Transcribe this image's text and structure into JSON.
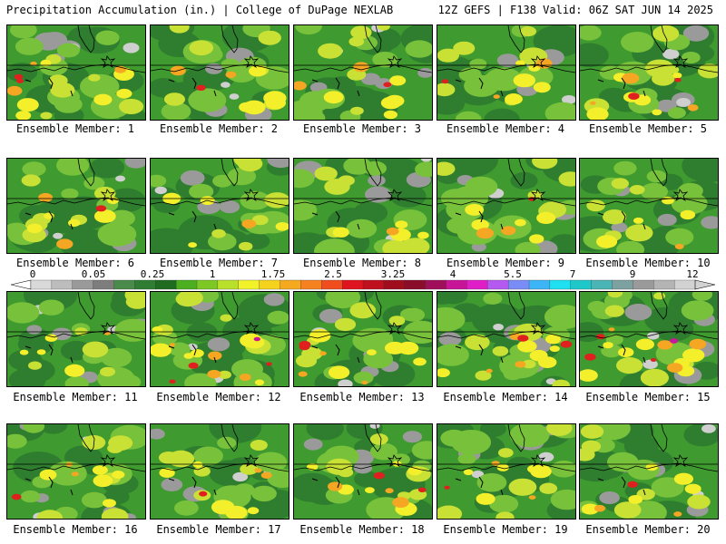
{
  "header": {
    "left": "Precipitation Accumulation (in.) | College of DuPage NEXLAB",
    "right": "12Z GEFS | F138 Valid: 06Z SAT JUN 14 2025"
  },
  "colorbar": {
    "labels": [
      "0",
      "0.05",
      "0.25",
      "1",
      "1.75",
      "2.5",
      "3.25",
      "4",
      "5.5",
      "7",
      "9",
      "12"
    ],
    "colors": [
      "#d9d9d9",
      "#bdbdbd",
      "#9a9a9a",
      "#7d7d7d",
      "#4a8a4a",
      "#2e7d32",
      "#1f6b1f",
      "#4caf1f",
      "#7ec825",
      "#b9e02a",
      "#f2f22a",
      "#f5d21e",
      "#f5a91e",
      "#f5821e",
      "#f04e1e",
      "#e0141e",
      "#c0101e",
      "#a00e1e",
      "#8a0d2a",
      "#a0105a",
      "#c81496",
      "#e01ec8",
      "#b45af0",
      "#7a8cf5",
      "#3cb4f5",
      "#1ee0f0",
      "#1ec8c8",
      "#4bb4b4",
      "#7da0a0",
      "#9a9a9a",
      "#b4b4b4",
      "#d2d2d2"
    ]
  },
  "member_label_prefix": "Ensemble Member: ",
  "palette": {
    "dark_green": "#2f7d2f",
    "mid_green": "#3f9a2f",
    "light_green": "#78c13a",
    "yellow_green": "#c9e034",
    "yellow": "#f3ef2a",
    "orange": "#f5a623",
    "red": "#e0201e",
    "magenta": "#c8189a",
    "gray": "#9a9a9a",
    "light_gray": "#cfcfcf"
  },
  "members": [
    {
      "id": "1"
    },
    {
      "id": "2"
    },
    {
      "id": "3"
    },
    {
      "id": "4"
    },
    {
      "id": "5"
    },
    {
      "id": "6"
    },
    {
      "id": "7"
    },
    {
      "id": "8"
    },
    {
      "id": "9"
    },
    {
      "id": "10"
    },
    {
      "id": "11"
    },
    {
      "id": "12"
    },
    {
      "id": "13"
    },
    {
      "id": "14"
    },
    {
      "id": "15"
    },
    {
      "id": "16"
    },
    {
      "id": "17"
    },
    {
      "id": "18"
    },
    {
      "id": "19"
    },
    {
      "id": "20"
    }
  ]
}
